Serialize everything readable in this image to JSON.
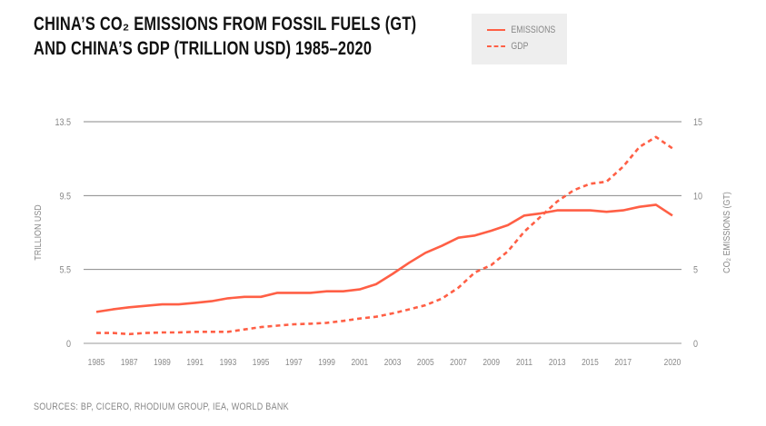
{
  "chart_data": {
    "type": "line",
    "title": [
      "CHINA’S CO₂ EMISSIONS FROM FOSSIL FUELS (GT)",
      "AND CHINA’S GDP (TRILLION USD) 1985–2020"
    ],
    "x": [
      1985,
      1986,
      1987,
      1988,
      1989,
      1990,
      1991,
      1992,
      1993,
      1994,
      1995,
      1996,
      1997,
      1998,
      1999,
      2000,
      2001,
      2002,
      2003,
      2004,
      2005,
      2006,
      2007,
      2008,
      2009,
      2010,
      2011,
      2012,
      2013,
      2014,
      2015,
      2016,
      2017,
      2018,
      2019,
      2020
    ],
    "x_tick_labels": [
      "1985",
      "1987",
      "1989",
      "1991",
      "1993",
      "1995",
      "1997",
      "1999",
      "2001",
      "2003",
      "2005",
      "2007",
      "2009",
      "2011",
      "2013",
      "2015",
      "2017",
      "2020"
    ],
    "left_axis": {
      "label": "TRILLION USD",
      "tick_labels": [
        "0",
        "5.5",
        "9.5",
        "13.5"
      ]
    },
    "right_axis": {
      "label": "CO₂ EMISSIONS (GT)",
      "tick_labels": [
        "0",
        "5",
        "10",
        "15"
      ],
      "range": [
        0,
        15
      ]
    },
    "grid": true,
    "legend_placement": "top-right",
    "series": [
      {
        "name": "EMISSIONS",
        "style": "solid",
        "color": "#ff5f45",
        "values": [
          2.13,
          2.3,
          2.44,
          2.54,
          2.64,
          2.64,
          2.74,
          2.85,
          3.05,
          3.15,
          3.15,
          3.42,
          3.42,
          3.42,
          3.52,
          3.52,
          3.65,
          4.0,
          4.7,
          5.45,
          6.13,
          6.6,
          7.15,
          7.3,
          7.62,
          8.0,
          8.65,
          8.8,
          9.0,
          9.0,
          9.0,
          8.9,
          9.0,
          9.24,
          9.38,
          8.65
        ]
      },
      {
        "name": "GDP",
        "style": "dashed",
        "color": "#ff5f45",
        "values": [
          0.7,
          0.7,
          0.63,
          0.7,
          0.74,
          0.74,
          0.78,
          0.78,
          0.78,
          0.94,
          1.1,
          1.2,
          1.29,
          1.33,
          1.39,
          1.52,
          1.68,
          1.8,
          2.03,
          2.3,
          2.58,
          3.03,
          3.77,
          4.8,
          5.3,
          6.23,
          7.56,
          8.58,
          9.6,
          10.36,
          10.8,
          10.94,
          11.96,
          13.3,
          13.97,
          13.2
        ]
      }
    ]
  },
  "sources": "SOURCES: BP, CICERO, RHODIUM GROUP, IEA, WORLD BANK"
}
